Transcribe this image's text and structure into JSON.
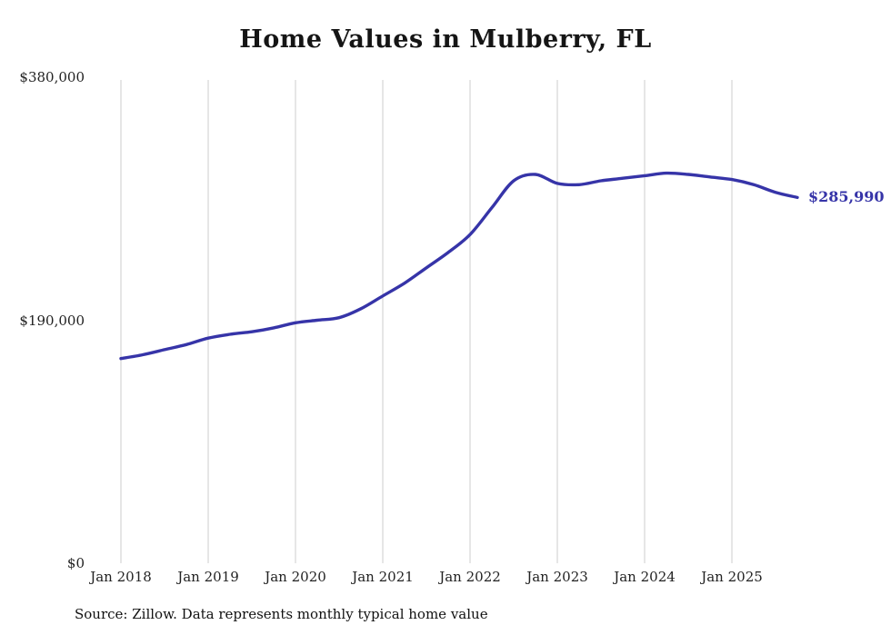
{
  "title": "Home Values in Mulberry, FL",
  "source_note": "Source: Zillow. Data represents monthly typical home value",
  "colors": {
    "line": "#3634a8",
    "grid": "#cccccc",
    "title_text": "#151515",
    "axis_text": "#222222"
  },
  "chart_data": {
    "type": "line",
    "title": "Home Values in Mulberry, FL",
    "series_name": "Monthly typical home value",
    "x": [
      "2018-01",
      "2018-04",
      "2018-07",
      "2018-10",
      "2019-01",
      "2019-04",
      "2019-07",
      "2019-10",
      "2020-01",
      "2020-04",
      "2020-07",
      "2020-10",
      "2021-01",
      "2021-04",
      "2021-07",
      "2021-10",
      "2022-01",
      "2022-04",
      "2022-07",
      "2022-10",
      "2023-01",
      "2023-04",
      "2023-07",
      "2023-10",
      "2024-01",
      "2024-04",
      "2024-07",
      "2024-10",
      "2025-01",
      "2025-04",
      "2025-07",
      "2025-10"
    ],
    "values": [
      160000,
      163000,
      167000,
      171000,
      176000,
      179000,
      181000,
      184000,
      188000,
      190000,
      192000,
      199000,
      209000,
      219000,
      231000,
      243000,
      257000,
      278000,
      299000,
      304000,
      297000,
      296000,
      299000,
      301000,
      303000,
      305000,
      304000,
      302000,
      300000,
      296000,
      290000,
      285990
    ],
    "x_tick_labels": [
      "Jan 2018",
      "Jan 2019",
      "Jan 2020",
      "Jan 2021",
      "Jan 2022",
      "Jan 2023",
      "Jan 2024",
      "Jan 2025"
    ],
    "x_tick_positions": [
      "2018-01",
      "2019-01",
      "2020-01",
      "2021-01",
      "2022-01",
      "2023-01",
      "2024-01",
      "2025-01"
    ],
    "y_ticks": [
      {
        "value": 0,
        "label": "$0"
      },
      {
        "value": 190000,
        "label": "$190,000"
      },
      {
        "value": 380000,
        "label": "$380,000"
      }
    ],
    "ylim": [
      0,
      380000
    ],
    "grid": "vertical-only",
    "legend": "none",
    "end_annotation": {
      "label": "$285,990",
      "value": 285990,
      "x": "2025-10"
    }
  }
}
